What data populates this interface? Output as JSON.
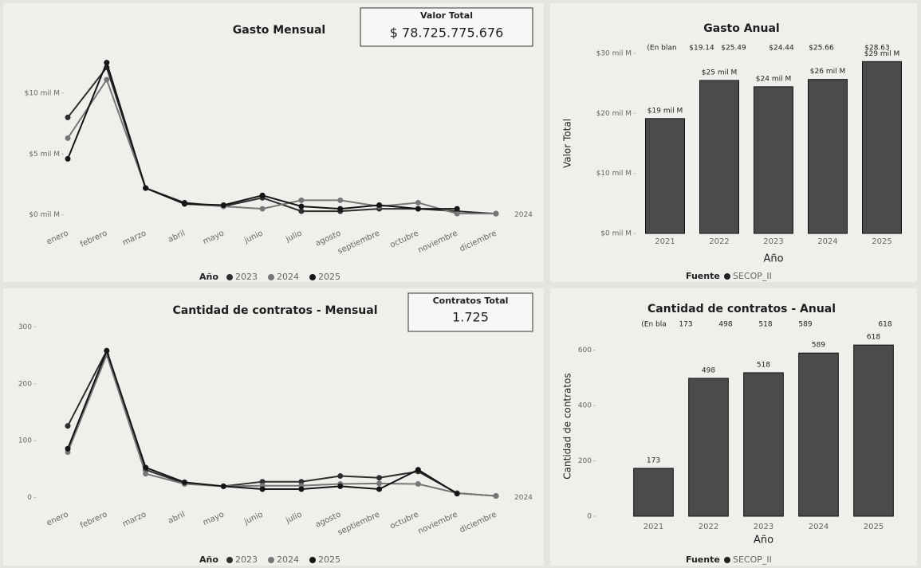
{
  "cards": [
    {
      "label": "Valor Total",
      "value": "$ 78.725.775.676"
    },
    {
      "label": "Contratos Total",
      "value": "1.725"
    }
  ],
  "chart_data": [
    {
      "type": "line",
      "title": "Gasto Mensual",
      "categories": [
        "enero",
        "febrero",
        "marzo",
        "abril",
        "mayo",
        "junio",
        "julio",
        "agosto",
        "septiembre",
        "octubre",
        "noviembre",
        "diciembre"
      ],
      "series": [
        {
          "name": "2023",
          "color": "#2e2e2e",
          "values": [
            8.0,
            12.1,
            2.2,
            1.0,
            0.7,
            1.4,
            0.3,
            0.3,
            0.5,
            0.5,
            0.3,
            0.1
          ]
        },
        {
          "name": "2024",
          "color": "#777777",
          "values": [
            6.3,
            11.1,
            2.2,
            0.9,
            0.7,
            0.5,
            1.2,
            1.2,
            0.7,
            1.0,
            0.1,
            0.1
          ]
        },
        {
          "name": "2025",
          "color": "#151515",
          "values": [
            4.6,
            12.5,
            2.2,
            0.9,
            0.8,
            1.6,
            0.7,
            0.5,
            0.8,
            0.5,
            0.5,
            null
          ]
        }
      ],
      "ylim": [
        -1,
        13
      ],
      "yticks": [
        {
          "value": 0,
          "label": "$0 mil M"
        },
        {
          "value": 5,
          "label": "$5 mil M"
        },
        {
          "value": 10,
          "label": "$10 mil M"
        }
      ],
      "legend_title": "Año",
      "end_label": "2024"
    },
    {
      "type": "bar",
      "title": "Gasto Anual",
      "header_row": [
        "(En blan",
        "$19.14",
        "$25.49",
        "$24.44",
        "$25.66",
        "$28.63"
      ],
      "categories": [
        "2021",
        "2022",
        "2023",
        "2024",
        "2025"
      ],
      "values": [
        19.14,
        25.49,
        24.44,
        25.66,
        28.63
      ],
      "value_labels": [
        "$19 mil M",
        "$25 mil M",
        "$24 mil M",
        "$26 mil M",
        "$29 mil M"
      ],
      "color": "#4b4b4b",
      "ylim": [
        0,
        30
      ],
      "yticks": [
        {
          "value": 0,
          "label": "$0 mil M"
        },
        {
          "value": 10,
          "label": "$10 mil M"
        },
        {
          "value": 20,
          "label": "$20 mil M"
        },
        {
          "value": 30,
          "label": "$30 mil M"
        }
      ],
      "xlabel": "Año",
      "ylabel": "Valor Total",
      "legend_title": "Fuente",
      "legend": [
        "SECOP_II"
      ]
    },
    {
      "type": "line",
      "title": "Cantidad de contratos - Mensual",
      "categories": [
        "enero",
        "febrero",
        "marzo",
        "abril",
        "mayo",
        "junio",
        "julio",
        "agosto",
        "septiembre",
        "octubre",
        "noviembre",
        "diciembre"
      ],
      "series": [
        {
          "name": "2023",
          "color": "#2e2e2e",
          "values": [
            126,
            258,
            49,
            25,
            20,
            28,
            28,
            38,
            35,
            46,
            8,
            3
          ]
        },
        {
          "name": "2024",
          "color": "#777777",
          "values": [
            80,
            251,
            42,
            24,
            20,
            21,
            21,
            24,
            25,
            24,
            8,
            3
          ]
        },
        {
          "name": "2025",
          "color": "#151515",
          "values": [
            86,
            258,
            53,
            27,
            20,
            15,
            15,
            20,
            15,
            49,
            7,
            null
          ]
        }
      ],
      "ylim": [
        -20,
        320
      ],
      "yticks": [
        0,
        100,
        200,
        300
      ],
      "legend_title": "Año",
      "end_label": "2024"
    },
    {
      "type": "bar",
      "title": "Cantidad de contratos - Anual",
      "header_row": [
        "(En bla",
        "173",
        "498",
        "518",
        "589",
        "618"
      ],
      "categories": [
        "2021",
        "2022",
        "2023",
        "2024",
        "2025"
      ],
      "values": [
        173,
        498,
        518,
        589,
        618
      ],
      "color": "#4b4b4b",
      "ylim": [
        0,
        650
      ],
      "yticks": [
        0,
        200,
        400,
        600
      ],
      "xlabel": "Año",
      "ylabel": "Cantidad de contratos",
      "legend_title": "Fuente",
      "legend": [
        "SECOP_II"
      ]
    }
  ]
}
